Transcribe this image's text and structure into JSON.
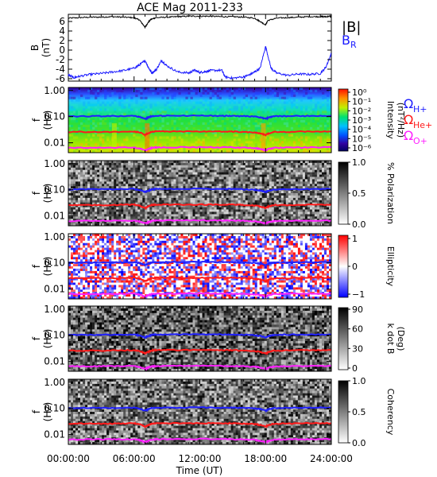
{
  "title": "ACE Mag 2011-233",
  "colors": {
    "b_total": "#000000",
    "b_r": "#1a1aff",
    "omega_h": "#2020ff",
    "omega_he": "#ff1a1a",
    "omega_o": "#ff20ff"
  },
  "chart_data": [
    {
      "type": "line",
      "panel": "magnetic-field",
      "ylabel": "B\n(nT)",
      "yticks": [
        "6",
        "4",
        "2",
        "0",
        "-2",
        "-4",
        "-6"
      ],
      "ylim": [
        -6.5,
        7.5
      ],
      "xlim": [
        0,
        24
      ],
      "series": [
        {
          "name": "|B|",
          "color": "#000000",
          "x": [
            0,
            1,
            2,
            3,
            4,
            5,
            6,
            6.5,
            7,
            7.2,
            7.5,
            8,
            9,
            10,
            11,
            12,
            13,
            14,
            15,
            16,
            17,
            17.5,
            18,
            18.2,
            19,
            20,
            21,
            22,
            23,
            23.5,
            24
          ],
          "y": [
            6.7,
            6.8,
            6.9,
            6.9,
            7.0,
            6.9,
            6.8,
            6.3,
            4.8,
            5.5,
            6.4,
            6.8,
            6.9,
            7.0,
            7.1,
            7.1,
            7.1,
            7.0,
            7.0,
            6.9,
            6.7,
            6.0,
            5.3,
            6.2,
            6.7,
            6.8,
            6.9,
            7.0,
            7.0,
            7.0,
            7.1
          ]
        },
        {
          "name": "B",
          "subscript": "R",
          "color": "#1a1aff",
          "x": [
            0,
            0.5,
            1,
            2,
            3,
            4,
            5,
            6,
            6.5,
            7,
            7.3,
            7.6,
            8,
            8.5,
            9,
            10,
            11,
            11.5,
            12,
            12.5,
            13,
            14,
            14.3,
            15,
            16,
            16.5,
            17,
            17.5,
            18,
            18.5,
            19,
            20,
            21,
            22,
            23,
            23.5,
            24
          ],
          "y": [
            -5.2,
            -5.8,
            -5.5,
            -5.1,
            -4.9,
            -4.6,
            -4.3,
            -3.8,
            -3.1,
            -2.2,
            -3.6,
            -4.8,
            -4.2,
            -2.2,
            -3.3,
            -4.6,
            -4.8,
            -4.2,
            -4.7,
            -4.5,
            -4.3,
            -4.2,
            -5.6,
            -5.9,
            -5.6,
            -5.2,
            -4.6,
            -3.8,
            0.8,
            -3.8,
            -4.8,
            -5.3,
            -5.0,
            -5.1,
            -4.9,
            -3.6,
            -0.7
          ]
        }
      ]
    },
    {
      "type": "heatmap",
      "panel": "intensity",
      "ylabel": "f\n(Hz)",
      "yticks": [
        "1.00",
        "0.10",
        "0.01"
      ],
      "colorbar_label": "Intensity\n(nT²/Hz)",
      "colorbar_ticks": [
        "10⁰",
        "10⁻¹",
        "10⁻²",
        "10⁻³",
        "10⁻⁴",
        "10⁻⁵",
        "10⁻⁶"
      ]
    },
    {
      "type": "heatmap",
      "panel": "polarization",
      "ylabel": "f\n(Hz)",
      "yticks": [
        "1.00",
        "0.10",
        "0.01"
      ],
      "colorbar_label": "% Polarization",
      "colorbar_ticks": [
        "1.0",
        "0.5",
        "0.0"
      ]
    },
    {
      "type": "heatmap",
      "panel": "ellipticity",
      "ylabel": "f\n(Hz)",
      "yticks": [
        "1.00",
        "0.10",
        "0.01"
      ],
      "colorbar_label": "Ellipticity",
      "colorbar_ticks": [
        "1",
        "0",
        "−1"
      ]
    },
    {
      "type": "heatmap",
      "panel": "k-dot-b",
      "ylabel": "f\n(Hz)",
      "yticks": [
        "1.00",
        "0.10",
        "0.01"
      ],
      "colorbar_label": "k dot B\n(Deg)",
      "colorbar_ticks": [
        "90",
        "60",
        "30",
        "0"
      ]
    },
    {
      "type": "heatmap",
      "panel": "coherency",
      "ylabel": "f\n(Hz)",
      "yticks": [
        "1.00",
        "0.10",
        "0.01"
      ],
      "colorbar_label": "Coherency",
      "colorbar_ticks": [
        "1.0",
        "0.5",
        "0.0"
      ]
    }
  ],
  "gyrofrequency_lines": {
    "x": [
      0,
      2,
      4,
      6,
      6.5,
      7,
      7.3,
      7.6,
      8,
      9,
      12,
      14,
      15,
      16,
      17,
      17.5,
      18,
      18.3,
      18.8,
      20,
      22,
      24
    ],
    "h_hz": [
      0.103,
      0.104,
      0.105,
      0.106,
      0.098,
      0.082,
      0.092,
      0.103,
      0.106,
      0.107,
      0.108,
      0.107,
      0.106,
      0.104,
      0.1,
      0.094,
      0.082,
      0.093,
      0.102,
      0.105,
      0.106,
      0.107
    ],
    "he_hz": [
      0.026,
      0.026,
      0.026,
      0.027,
      0.025,
      0.02,
      0.023,
      0.026,
      0.027,
      0.027,
      0.027,
      0.027,
      0.027,
      0.026,
      0.025,
      0.023,
      0.02,
      0.023,
      0.026,
      0.026,
      0.027,
      0.027
    ]
  },
  "legend": {
    "b_total": "|B|",
    "b_r": "B",
    "b_r_sub": "R",
    "omega": "Ω",
    "h_sub": "H+",
    "he_sub": "He+",
    "o_sub": "O+"
  },
  "xaxis": {
    "label": "Time (UT)",
    "ticks": [
      "00:00:00",
      "06:00:00",
      "12:00:00",
      "18:00:00",
      "24:00:00"
    ]
  }
}
